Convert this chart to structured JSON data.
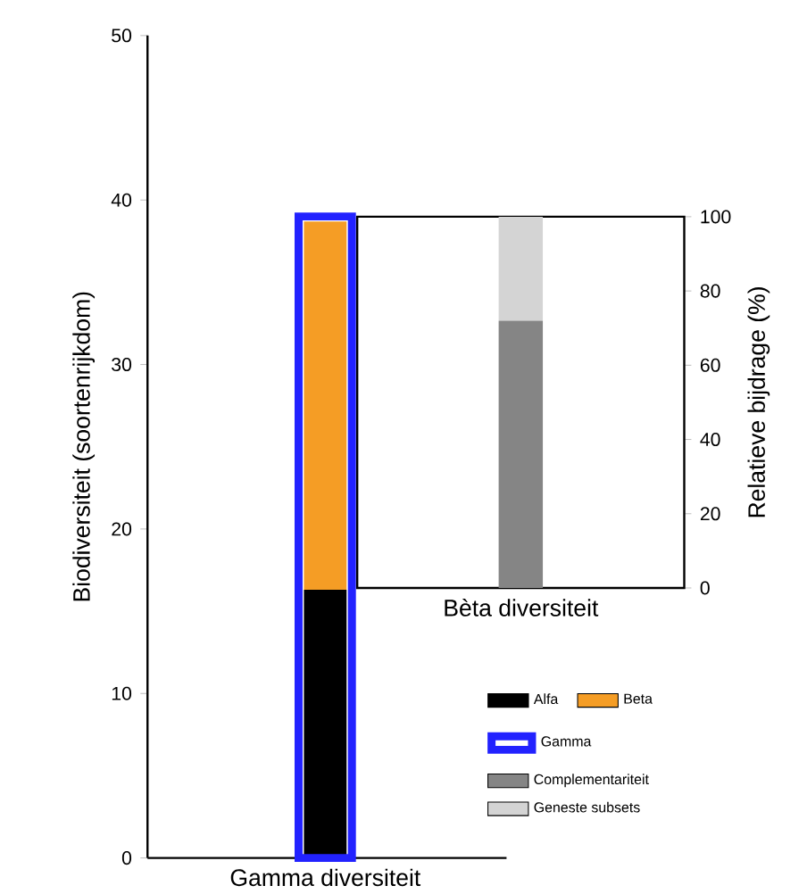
{
  "chart_data": [
    {
      "type": "bar",
      "stacked": true,
      "categories": [
        "Gamma diversiteit"
      ],
      "ylabel": "Biodiversiteit (soortenrijkdom)",
      "ylim": [
        0,
        50
      ],
      "yticks": [
        0,
        10,
        20,
        30,
        40,
        50
      ],
      "legend": "bottom right",
      "series": [
        {
          "name": "Alfa",
          "color": "#000000",
          "values": [
            16.3
          ]
        },
        {
          "name": "Beta",
          "color": "#f59d25",
          "values": [
            22.4
          ]
        }
      ]
    },
    {
      "type": "bar",
      "categories": [
        null
      ],
      "ylim": [
        0,
        50
      ],
      "tick_labels": false,
      "legend": "bottom right",
      "series": [
        {
          "name": "Gamma",
          "color": "#2222ff",
          "values": [
            39
          ]
        }
      ]
    },
    {
      "type": "bar",
      "stacked": true,
      "categories": [
        "Bèta diversiteit"
      ],
      "ylabel": "Relatieve bijdrage (%)",
      "ylim": [
        0,
        100
      ],
      "yticks": [
        0,
        20,
        40,
        60,
        80,
        100
      ],
      "legend": "bottom",
      "series": [
        {
          "name": "Complementariteit",
          "color": "#858585",
          "values": [
            72
          ]
        },
        {
          "name": "Geneste subsets",
          "color": "#d4d4d4",
          "values": [
            28
          ]
        }
      ]
    }
  ]
}
